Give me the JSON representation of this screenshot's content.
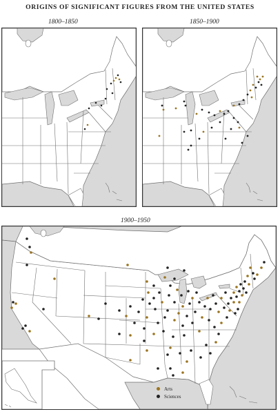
{
  "title": "ORIGINS OF SIGNIFICANT FIGURES FROM THE UNITED STATES",
  "maps": [
    {
      "period": "1800–1850"
    },
    {
      "period": "1850–1900"
    },
    {
      "period": "1900–1950"
    }
  ],
  "legend": [
    {
      "label": "Arts",
      "color": "#9a7420"
    },
    {
      "label": "Sciences",
      "color": "#222222"
    }
  ],
  "colors": {
    "land": "#ffffff",
    "water": "#d9d9d9",
    "borders": "#6e6e6e",
    "frame": "#333333"
  }
}
